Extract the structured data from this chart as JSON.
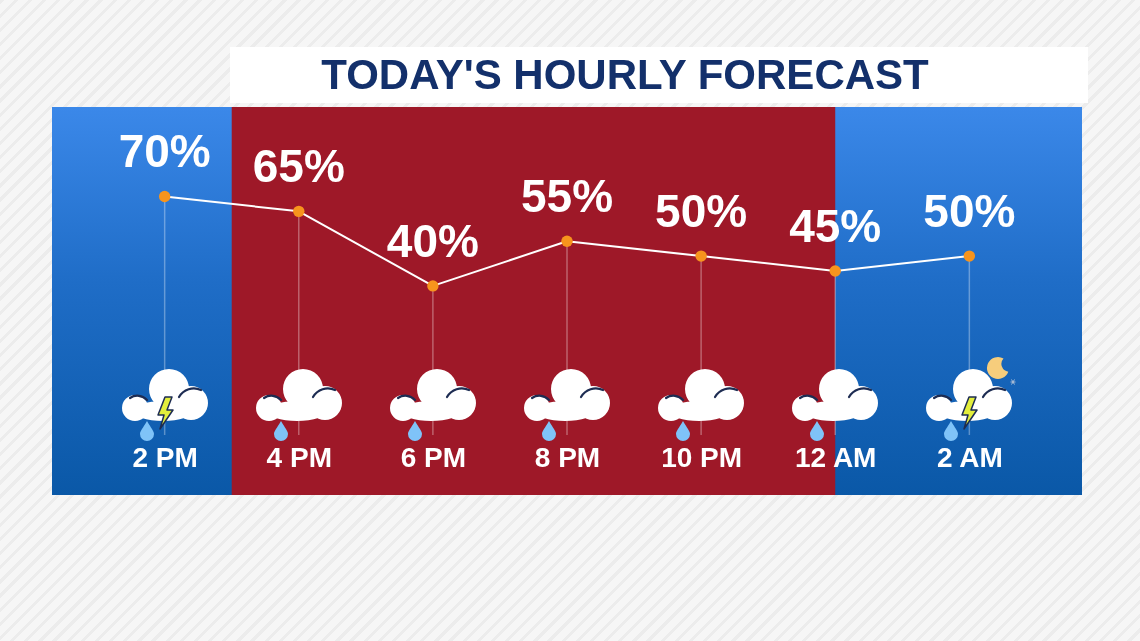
{
  "chart_data": {
    "type": "line",
    "title": "TODAY'S HOURLY FORECAST",
    "categories": [
      "2 PM",
      "4 PM",
      "6 PM",
      "8 PM",
      "10 PM",
      "12 AM",
      "2 AM"
    ],
    "values": [
      70,
      65,
      40,
      55,
      50,
      45,
      50
    ],
    "value_labels": [
      "70%",
      "65%",
      "40%",
      "55%",
      "50%",
      "45%",
      "50%"
    ],
    "color": "#ffffff",
    "colors": [
      "#f7941d",
      "#f7941d",
      "#f7941d",
      "#f7941d",
      "#f7941d",
      "#f7941d",
      "#f7941d"
    ],
    "marker": "circle",
    "line_style": "solid",
    "ylim": [
      -10,
      100
    ],
    "tick_labels": "x",
    "bands": [
      {
        "axis": "x",
        "from": "4 PM",
        "to": "12 AM",
        "color": "#9e1828"
      }
    ]
  }
}
